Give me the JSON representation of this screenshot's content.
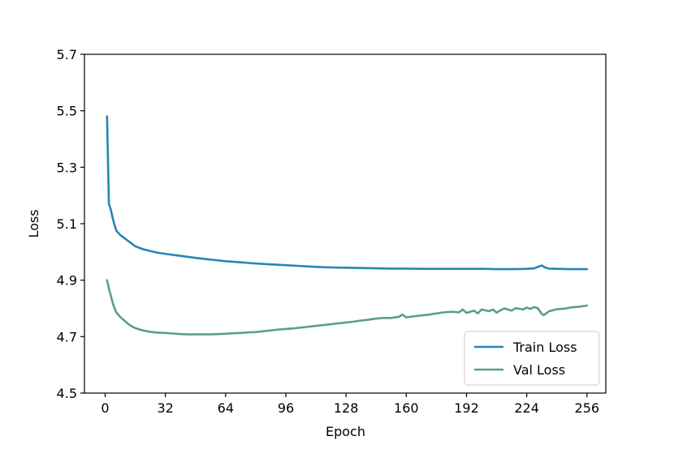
{
  "chart_data": {
    "type": "line",
    "title": "",
    "xlabel": "Epoch",
    "ylabel": "Loss",
    "xlim": [
      -11,
      266
    ],
    "ylim": [
      4.5,
      5.7
    ],
    "xticks": [
      0,
      32,
      64,
      96,
      128,
      160,
      192,
      224,
      256
    ],
    "xtick_labels": [
      "0",
      "32",
      "64",
      "96",
      "128",
      "160",
      "192",
      "224",
      "256"
    ],
    "yticks": [
      4.5,
      4.7,
      4.9,
      5.1,
      5.3,
      5.5,
      5.7
    ],
    "ytick_labels": [
      "4.5",
      "4.7",
      "4.9",
      "5.1",
      "5.3",
      "5.5",
      "5.7"
    ],
    "grid": false,
    "legend_position": "lower-right",
    "series": [
      {
        "name": "Train Loss",
        "color": "#2586b6",
        "points": [
          [
            1,
            5.48
          ],
          [
            2,
            5.17
          ],
          [
            3,
            5.15
          ],
          [
            4,
            5.12
          ],
          [
            5,
            5.095
          ],
          [
            6,
            5.075
          ],
          [
            8,
            5.06
          ],
          [
            10,
            5.05
          ],
          [
            12,
            5.04
          ],
          [
            14,
            5.03
          ],
          [
            16,
            5.02
          ],
          [
            20,
            5.01
          ],
          [
            24,
            5.003
          ],
          [
            28,
            4.997
          ],
          [
            32,
            4.993
          ],
          [
            40,
            4.986
          ],
          [
            48,
            4.979
          ],
          [
            56,
            4.973
          ],
          [
            64,
            4.967
          ],
          [
            72,
            4.963
          ],
          [
            80,
            4.959
          ],
          [
            88,
            4.956
          ],
          [
            96,
            4.953
          ],
          [
            104,
            4.95
          ],
          [
            112,
            4.947
          ],
          [
            120,
            4.945
          ],
          [
            128,
            4.944
          ],
          [
            136,
            4.943
          ],
          [
            144,
            4.942
          ],
          [
            152,
            4.941
          ],
          [
            160,
            4.941
          ],
          [
            168,
            4.94
          ],
          [
            176,
            4.94
          ],
          [
            184,
            4.94
          ],
          [
            192,
            4.94
          ],
          [
            200,
            4.94
          ],
          [
            208,
            4.939
          ],
          [
            216,
            4.939
          ],
          [
            224,
            4.94
          ],
          [
            228,
            4.942
          ],
          [
            232,
            4.952
          ],
          [
            234,
            4.944
          ],
          [
            236,
            4.941
          ],
          [
            240,
            4.94
          ],
          [
            248,
            4.939
          ],
          [
            256,
            4.939
          ]
        ]
      },
      {
        "name": "Val Loss",
        "color": "#5a9e89",
        "points": [
          [
            1,
            4.9
          ],
          [
            2,
            4.87
          ],
          [
            3,
            4.845
          ],
          [
            4,
            4.82
          ],
          [
            5,
            4.8
          ],
          [
            6,
            4.785
          ],
          [
            8,
            4.77
          ],
          [
            10,
            4.758
          ],
          [
            12,
            4.746
          ],
          [
            14,
            4.737
          ],
          [
            16,
            4.73
          ],
          [
            20,
            4.722
          ],
          [
            24,
            4.717
          ],
          [
            28,
            4.714
          ],
          [
            32,
            4.713
          ],
          [
            36,
            4.711
          ],
          [
            40,
            4.709
          ],
          [
            44,
            4.708
          ],
          [
            48,
            4.708
          ],
          [
            52,
            4.708
          ],
          [
            56,
            4.708
          ],
          [
            60,
            4.709
          ],
          [
            64,
            4.71
          ],
          [
            68,
            4.712
          ],
          [
            72,
            4.713
          ],
          [
            76,
            4.715
          ],
          [
            80,
            4.716
          ],
          [
            84,
            4.719
          ],
          [
            88,
            4.722
          ],
          [
            92,
            4.725
          ],
          [
            96,
            4.727
          ],
          [
            100,
            4.729
          ],
          [
            104,
            4.732
          ],
          [
            108,
            4.735
          ],
          [
            112,
            4.738
          ],
          [
            116,
            4.741
          ],
          [
            120,
            4.744
          ],
          [
            124,
            4.747
          ],
          [
            128,
            4.75
          ],
          [
            132,
            4.753
          ],
          [
            136,
            4.757
          ],
          [
            140,
            4.76
          ],
          [
            144,
            4.764
          ],
          [
            148,
            4.766
          ],
          [
            152,
            4.766
          ],
          [
            156,
            4.77
          ],
          [
            158,
            4.778
          ],
          [
            160,
            4.768
          ],
          [
            164,
            4.772
          ],
          [
            168,
            4.775
          ],
          [
            172,
            4.778
          ],
          [
            176,
            4.782
          ],
          [
            180,
            4.786
          ],
          [
            184,
            4.788
          ],
          [
            188,
            4.786
          ],
          [
            190,
            4.796
          ],
          [
            192,
            4.784
          ],
          [
            196,
            4.792
          ],
          [
            198,
            4.782
          ],
          [
            200,
            4.796
          ],
          [
            204,
            4.79
          ],
          [
            206,
            4.796
          ],
          [
            208,
            4.785
          ],
          [
            210,
            4.793
          ],
          [
            212,
            4.8
          ],
          [
            216,
            4.792
          ],
          [
            218,
            4.801
          ],
          [
            222,
            4.796
          ],
          [
            224,
            4.803
          ],
          [
            226,
            4.798
          ],
          [
            228,
            4.805
          ],
          [
            230,
            4.8
          ],
          [
            232,
            4.78
          ],
          [
            233,
            4.776
          ],
          [
            236,
            4.79
          ],
          [
            240,
            4.797
          ],
          [
            244,
            4.799
          ],
          [
            248,
            4.804
          ],
          [
            252,
            4.806
          ],
          [
            256,
            4.81
          ]
        ]
      }
    ]
  }
}
